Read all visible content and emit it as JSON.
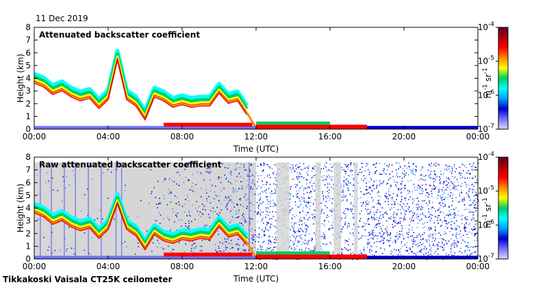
{
  "date": "11 Dec 2019",
  "footer": "Tikkakoski Vaisala CT25K ceilometer",
  "colormap": [
    "#d9d9ff",
    "#7070ff",
    "#0000cc",
    "#00a0ff",
    "#00ffff",
    "#00cc66",
    "#ffff00",
    "#ff8800",
    "#ff0000",
    "#b00000",
    "#5a0033"
  ],
  "chart_data": [
    {
      "type": "heatmap",
      "title": "Attenuated backscatter coefficient",
      "xlabel": "Time (UTC)",
      "ylabel": "Height (km)",
      "xticks": [
        "00:00",
        "04:00",
        "08:00",
        "12:00",
        "16:00",
        "20:00",
        "00:00"
      ],
      "xlim_hours": [
        0,
        24
      ],
      "yticks": [
        0,
        1,
        2,
        3,
        4,
        5,
        6,
        7,
        8
      ],
      "ylim": [
        0,
        8
      ],
      "colorbar": {
        "label_base": "m",
        "label_exp1": "-1",
        "label_mid": " sr",
        "label_exp2": "-1",
        "ticks": [
          {
            "base": "10",
            "exp": "-4",
            "value": 0.0001
          },
          {
            "base": "10",
            "exp": "-5",
            "value": 1e-05
          },
          {
            "base": "10",
            "exp": "-6",
            "value": 1e-06
          },
          {
            "base": "10",
            "exp": "-7",
            "value": 1e-07
          }
        ],
        "scale": "log"
      },
      "cloud_layer": {
        "x_hours": [
          0,
          0.5,
          1.0,
          1.5,
          2.0,
          2.5,
          3.0,
          3.5,
          4.0,
          4.5,
          5.0,
          5.5,
          6.0,
          6.5,
          7.0,
          7.5,
          8.0,
          8.5,
          9.0,
          9.5,
          10.0,
          10.5,
          11.0,
          11.5
        ],
        "y_km": [
          3.8,
          3.5,
          2.9,
          3.2,
          2.7,
          2.4,
          2.6,
          1.8,
          2.5,
          5.6,
          2.5,
          2.0,
          0.9,
          2.7,
          2.4,
          1.9,
          2.1,
          1.9,
          2.0,
          2.0,
          3.0,
          2.2,
          2.4,
          1.3
        ]
      },
      "noise": false
    },
    {
      "type": "heatmap",
      "title": "Raw attenuated backscatter coefficient",
      "xlabel": "Time (UTC)",
      "ylabel": "Height (km)",
      "xticks": [
        "00:00",
        "04:00",
        "08:00",
        "12:00",
        "16:00",
        "20:00",
        "00:00"
      ],
      "xlim_hours": [
        0,
        24
      ],
      "yticks": [
        0,
        1,
        2,
        3,
        4,
        5,
        6,
        7,
        8
      ],
      "ylim": [
        0,
        8
      ],
      "colorbar": {
        "label_base": "m",
        "label_exp1": "-1",
        "label_mid": " sr",
        "label_exp2": "-1",
        "ticks": [
          {
            "base": "10",
            "exp": "-4",
            "value": 0.0001
          },
          {
            "base": "10",
            "exp": "-5",
            "value": 1e-05
          },
          {
            "base": "10",
            "exp": "-6",
            "value": 1e-06
          },
          {
            "base": "10",
            "exp": "-7",
            "value": 1e-07
          }
        ],
        "scale": "log"
      },
      "cloud_layer": {
        "x_hours": [
          0,
          0.5,
          1.0,
          1.5,
          2.0,
          2.5,
          3.0,
          3.5,
          4.0,
          4.5,
          5.0,
          5.5,
          6.0,
          6.5,
          7.0,
          7.5,
          8.0,
          8.5,
          9.0,
          9.5,
          10.0,
          10.5,
          11.0,
          11.5
        ],
        "y_km": [
          3.8,
          3.5,
          2.9,
          3.2,
          2.7,
          2.4,
          2.6,
          1.8,
          2.5,
          4.5,
          2.5,
          2.0,
          0.9,
          2.1,
          1.6,
          1.4,
          1.7,
          1.6,
          1.8,
          1.7,
          2.7,
          1.9,
          2.1,
          1.3
        ]
      },
      "noise": true
    }
  ]
}
